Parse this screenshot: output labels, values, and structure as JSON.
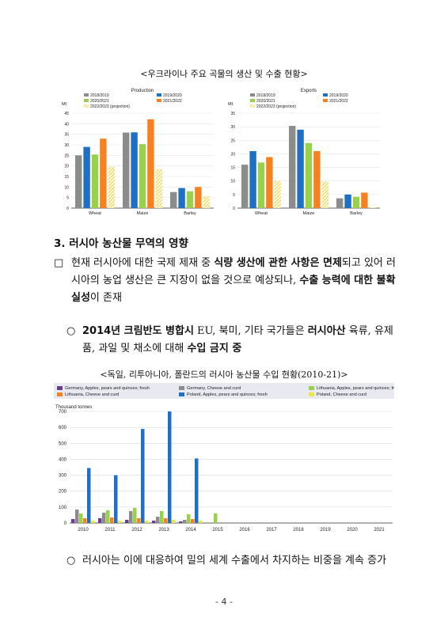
{
  "caption1": "<우크라이나 주요 곡물의 생산 및 수출 현황>",
  "caption2": "<독일, 리투아니아, 폴란드의 러시아 농산물 수입 현황(2010-21)>",
  "section_title": "3. 러시아 농산물 무역의 영향",
  "para1": {
    "bullet": "□",
    "t1": "현재 러시아에 대한 국제 제재 중 ",
    "b1": "식량 생산에 관한 사항은 면제",
    "t2": "되고 있어 러시아의 농업 생산은 큰 지장이 없을 것으로 예상되나, ",
    "b2": "수출 능력에 대한 불확실성",
    "t3": "이 존재"
  },
  "para2": {
    "bullet": "○",
    "b1": "2014년 크림반도 병합시",
    "t1": " EU, 북미, 기타 국가들은 ",
    "b2": "러시아산",
    "t2": " 육류, 유제품, 과일 및 채소에 대해 ",
    "b3": "수입 금지 중"
  },
  "para3": {
    "bullet": "○",
    "t1": "러시아는 이에 대응하여 밀의 세계 수출에서 차지하는 비중을 계속 증가"
  },
  "page_number": "- 4 -",
  "colors": {
    "gray": "#8c8c8c",
    "blue": "#1f6fc5",
    "green": "#9bcf4e",
    "orange": "#f58220",
    "yellow": "#f2de6a",
    "darkpurple": "#6b3d8c",
    "lightyellow": "#e8e84a"
  },
  "chart_data": [
    {
      "type": "bar",
      "title": "Production",
      "ylabel": "Mt",
      "ylim": [
        0,
        45
      ],
      "yticks": [
        "0",
        "5",
        "10",
        "15",
        "20",
        "25",
        "30",
        "35",
        "40",
        "45"
      ],
      "categories": [
        "Wheat",
        "Maize",
        "Barley"
      ],
      "legend": [
        "2018/2019",
        "2019/2020",
        "2020/2021",
        "2021/2022",
        "2022/2023 (projection)"
      ],
      "series": [
        {
          "name": "2018/2019",
          "values": [
            25,
            35.8,
            7.6
          ]
        },
        {
          "name": "2019/2020",
          "values": [
            29,
            35.9,
            9.5
          ]
        },
        {
          "name": "2020/2021",
          "values": [
            25.4,
            30.3,
            8
          ]
        },
        {
          "name": "2021/2022",
          "values": [
            32.9,
            42.1,
            10
          ]
        },
        {
          "name": "2022/2023 (projection)",
          "values": [
            19.5,
            18.5,
            5.7
          ]
        }
      ]
    },
    {
      "type": "bar",
      "title": "Exports",
      "ylabel": "Mt",
      "ylim": [
        0,
        35
      ],
      "yticks": [
        "0",
        "5",
        "10",
        "15",
        "20",
        "25",
        "30",
        "35"
      ],
      "categories": [
        "Wheat",
        "Maize",
        "Barley"
      ],
      "legend": [
        "2018/2019",
        "2019/2020",
        "2020/2021",
        "2021/2022",
        "2022/2023 (projection)"
      ],
      "series": [
        {
          "name": "2018/2019",
          "values": [
            16,
            30.3,
            3.6
          ]
        },
        {
          "name": "2019/2020",
          "values": [
            21,
            28.9,
            5
          ]
        },
        {
          "name": "2020/2021",
          "values": [
            16.8,
            24,
            4.2
          ]
        },
        {
          "name": "2021/2022",
          "values": [
            18.8,
            21,
            5.7
          ]
        },
        {
          "name": "2022/2023 (projection)",
          "values": [
            10,
            9.8,
            0.3
          ]
        }
      ]
    },
    {
      "type": "bar",
      "ylabel": "Thousand tonnes",
      "ylim": [
        0,
        700
      ],
      "yticks": [
        "0",
        "100",
        "200",
        "300",
        "400",
        "500",
        "600",
        "700"
      ],
      "categories": [
        "2010",
        "2011",
        "2012",
        "2013",
        "2014",
        "2015",
        "2016",
        "2017",
        "2018",
        "2019",
        "2020",
        "2021"
      ],
      "legend": [
        "Germany, Apples, pears and quinces; fresh",
        "Germany, Cheese and curd",
        "Lithuania, Apples, pears and quinces; fresh",
        "Lithuania, Cheese and curd",
        "Poland, Apples, pears and quinces; fresh",
        "Poland, Cheese and curd"
      ],
      "series": [
        {
          "name": "Germany, Apples, pears and quinces; fresh",
          "values": [
            25,
            30,
            20,
            15,
            10,
            0,
            0,
            0,
            0,
            0,
            0,
            0
          ]
        },
        {
          "name": "Germany, Cheese and curd",
          "values": [
            85,
            65,
            75,
            40,
            20,
            0,
            0,
            0,
            0,
            0,
            0,
            0
          ]
        },
        {
          "name": "Lithuania, Apples, pears and quinces; fresh",
          "values": [
            60,
            80,
            95,
            75,
            55,
            60,
            0,
            0,
            0,
            0,
            0,
            0
          ]
        },
        {
          "name": "Lithuania, Cheese and curd",
          "values": [
            30,
            35,
            30,
            30,
            25,
            0,
            0,
            0,
            0,
            0,
            0,
            0
          ]
        },
        {
          "name": "Poland, Apples, pears and quinces; fresh",
          "values": [
            345,
            300,
            590,
            700,
            405,
            0,
            0,
            0,
            0,
            0,
            0,
            0
          ]
        },
        {
          "name": "Poland, Cheese and curd",
          "values": [
            15,
            15,
            15,
            20,
            15,
            0,
            0,
            0,
            0,
            0,
            0,
            0
          ]
        }
      ]
    }
  ]
}
